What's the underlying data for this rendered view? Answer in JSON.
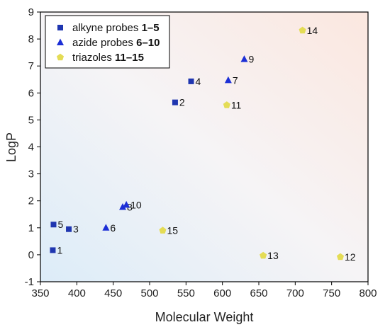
{
  "chart_data": {
    "type": "scatter",
    "title": "",
    "xlabel": "Molecular Weight",
    "ylabel": "LogP",
    "xlim": [
      350,
      800
    ],
    "ylim": [
      -1,
      9
    ],
    "xticks": [
      350,
      400,
      450,
      500,
      550,
      600,
      650,
      700,
      750,
      800
    ],
    "yticks": [
      -1,
      0,
      1,
      2,
      3,
      4,
      5,
      6,
      7,
      8,
      9
    ],
    "grid": false,
    "legend_position": "top-left",
    "background": "gradient: light orange at top-right to light blue at bottom-left",
    "series": [
      {
        "name_prefix": "alkyne probes ",
        "name_bold": "1–5",
        "marker": "square",
        "color": "#1f36b0",
        "points": [
          {
            "x": 367,
            "y": 0.17,
            "label": "1"
          },
          {
            "x": 535,
            "y": 5.65,
            "label": "2"
          },
          {
            "x": 389,
            "y": 0.95,
            "label": "3"
          },
          {
            "x": 557,
            "y": 6.43,
            "label": "4"
          },
          {
            "x": 368,
            "y": 1.12,
            "label": "5"
          }
        ]
      },
      {
        "name_prefix": "azide probes ",
        "name_bold": "6–10",
        "marker": "triangle",
        "color": "#1c2fd6",
        "points": [
          {
            "x": 440,
            "y": 1.0,
            "label": "6"
          },
          {
            "x": 608,
            "y": 6.47,
            "label": "7"
          },
          {
            "x": 463,
            "y": 1.77,
            "label": "8"
          },
          {
            "x": 630,
            "y": 7.25,
            "label": "9"
          },
          {
            "x": 468,
            "y": 1.85,
            "label": "10"
          }
        ]
      },
      {
        "name_prefix": "triazoles ",
        "name_bold": "11–15",
        "marker": "pentagon",
        "color": "#e4dc55",
        "points": [
          {
            "x": 606,
            "y": 5.55,
            "label": "11"
          },
          {
            "x": 762,
            "y": -0.08,
            "label": "12"
          },
          {
            "x": 656,
            "y": -0.03,
            "label": "13"
          },
          {
            "x": 710,
            "y": 8.32,
            "label": "14"
          },
          {
            "x": 518,
            "y": 0.9,
            "label": "15"
          }
        ]
      }
    ]
  }
}
